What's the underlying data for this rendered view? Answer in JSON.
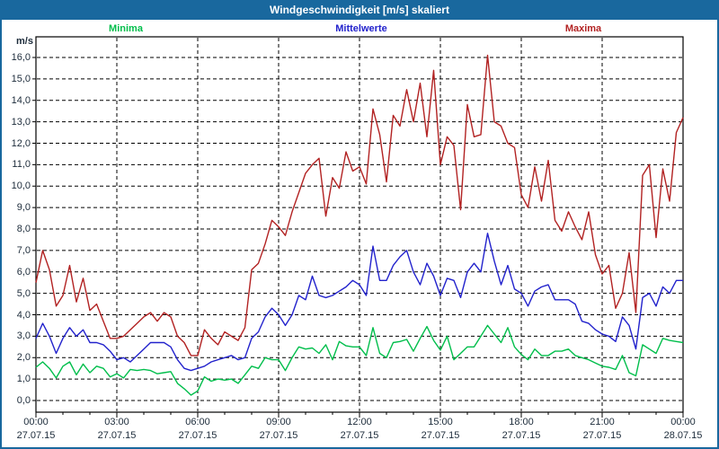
{
  "title": "Windgeschwindigkeit [m/s] skaliert",
  "colors": {
    "titlebar_bg": "#19689E",
    "title_text": "#FFFFFF",
    "frame_border": "#19689E",
    "plot_border": "#000000",
    "grid": "#000000",
    "axis_text": "#1C2B3A",
    "minima": "#00BE4B",
    "mittelwerte": "#2222CC",
    "maxima": "#B22222"
  },
  "chart_data": {
    "type": "line",
    "title": "Windgeschwindigkeit [m/s] skaliert",
    "ylabel_unit": "m/s",
    "ylim": [
      0,
      16
    ],
    "y_tick_step": 1,
    "grid": true,
    "legend_position": "top",
    "x_start_hour": 0,
    "x_step_hours": 0.25,
    "x_end_hour": 24,
    "legend": [
      {
        "label": "Minima",
        "color": "#00BE4B"
      },
      {
        "label": "Mittelwerte",
        "color": "#2222CC"
      },
      {
        "label": "Maxima",
        "color": "#B22222"
      }
    ],
    "y_ticks": [
      "16,0",
      "15,0",
      "14,0",
      "13,0",
      "12,0",
      "11,0",
      "10,0",
      "9,0",
      "8,0",
      "7,0",
      "6,0",
      "5,0",
      "4,0",
      "3,0",
      "2,0",
      "1,0",
      "0,0"
    ],
    "x_ticks": [
      {
        "hour": 0,
        "time": "00:00",
        "date": "27.07.15"
      },
      {
        "hour": 3,
        "time": "03:00",
        "date": "27.07.15"
      },
      {
        "hour": 6,
        "time": "06:00",
        "date": "27.07.15"
      },
      {
        "hour": 9,
        "time": "09:00",
        "date": "27.07.15"
      },
      {
        "hour": 12,
        "time": "12:00",
        "date": "27.07.15"
      },
      {
        "hour": 15,
        "time": "15:00",
        "date": "27.07.15"
      },
      {
        "hour": 18,
        "time": "18:00",
        "date": "27.07.15"
      },
      {
        "hour": 21,
        "time": "21:00",
        "date": "27.07.15"
      },
      {
        "hour": 24,
        "time": "00:00",
        "date": "28.07.15"
      }
    ],
    "series": [
      {
        "name": "Minima",
        "color": "#00BE4B",
        "values": [
          1.55,
          1.8,
          1.5,
          1.05,
          1.6,
          1.8,
          1.2,
          1.7,
          1.3,
          1.6,
          1.5,
          1.1,
          1.25,
          1.05,
          1.45,
          1.4,
          1.45,
          1.4,
          1.25,
          1.3,
          1.35,
          0.8,
          0.55,
          0.25,
          0.45,
          1.1,
          0.9,
          1.0,
          0.95,
          1.0,
          0.8,
          1.2,
          1.6,
          1.5,
          2.0,
          1.9,
          1.9,
          1.4,
          2.0,
          2.5,
          2.4,
          2.45,
          2.2,
          2.6,
          1.9,
          2.75,
          2.55,
          2.5,
          2.5,
          2.1,
          3.4,
          2.2,
          2.0,
          2.7,
          2.75,
          2.85,
          2.3,
          2.9,
          3.45,
          2.8,
          2.35,
          3.0,
          1.9,
          2.2,
          2.5,
          2.5,
          3.0,
          3.5,
          3.1,
          2.7,
          3.4,
          2.5,
          2.15,
          1.9,
          2.4,
          2.1,
          2.1,
          2.3,
          2.3,
          2.4,
          2.1,
          2.0,
          1.9,
          1.75,
          1.6,
          1.55,
          1.45,
          2.1,
          1.3,
          1.15,
          2.6,
          2.4,
          2.2,
          2.9,
          2.8,
          2.75,
          2.7
        ]
      },
      {
        "name": "Mittelwerte",
        "color": "#2222CC",
        "values": [
          2.9,
          3.6,
          3.0,
          2.2,
          2.9,
          3.4,
          3.0,
          3.3,
          2.7,
          2.7,
          2.6,
          2.3,
          1.9,
          2.0,
          1.8,
          2.1,
          2.4,
          2.7,
          2.7,
          2.7,
          2.5,
          1.9,
          1.5,
          1.4,
          1.5,
          1.6,
          1.8,
          1.9,
          2.0,
          2.1,
          1.9,
          2.0,
          2.9,
          3.2,
          3.9,
          4.3,
          4.0,
          3.5,
          4.0,
          4.9,
          4.7,
          5.8,
          4.9,
          4.8,
          4.9,
          5.1,
          5.3,
          5.6,
          5.4,
          4.9,
          7.2,
          5.6,
          5.6,
          6.3,
          6.7,
          7.0,
          6.0,
          5.4,
          6.4,
          5.8,
          4.9,
          5.7,
          5.6,
          4.8,
          6.0,
          6.4,
          6.0,
          7.8,
          6.5,
          5.4,
          6.3,
          5.2,
          5.0,
          4.4,
          5.1,
          5.3,
          5.4,
          4.7,
          4.7,
          4.7,
          4.5,
          3.7,
          3.6,
          3.3,
          3.1,
          3.0,
          2.75,
          3.9,
          3.5,
          2.4,
          4.8,
          5.0,
          4.4,
          5.3,
          5.0,
          5.6,
          5.6
        ]
      },
      {
        "name": "Maxima",
        "color": "#B22222",
        "values": [
          5.5,
          7.0,
          6.1,
          4.4,
          4.9,
          6.3,
          4.6,
          5.7,
          4.2,
          4.5,
          3.7,
          2.9,
          2.9,
          3.0,
          3.3,
          3.6,
          3.9,
          4.1,
          3.7,
          4.1,
          3.9,
          3.0,
          2.7,
          2.1,
          2.1,
          3.3,
          2.9,
          2.6,
          3.2,
          3.0,
          2.8,
          3.4,
          6.1,
          6.4,
          7.3,
          8.4,
          8.1,
          7.7,
          8.8,
          9.7,
          10.6,
          11.0,
          11.3,
          8.6,
          10.4,
          9.9,
          11.6,
          10.7,
          10.9,
          10.1,
          13.6,
          12.4,
          10.2,
          13.3,
          12.8,
          14.5,
          13.0,
          14.8,
          12.3,
          15.4,
          11.0,
          12.3,
          11.9,
          8.9,
          13.8,
          12.3,
          12.4,
          16.1,
          13.0,
          12.8,
          12.0,
          11.8,
          9.6,
          9.0,
          10.9,
          9.3,
          11.2,
          8.4,
          7.9,
          8.8,
          8.1,
          7.5,
          8.8,
          6.8,
          5.9,
          6.3,
          4.3,
          5.0,
          6.9,
          4.1,
          10.5,
          11.0,
          7.6,
          10.8,
          9.3,
          12.5,
          13.2
        ]
      }
    ]
  }
}
